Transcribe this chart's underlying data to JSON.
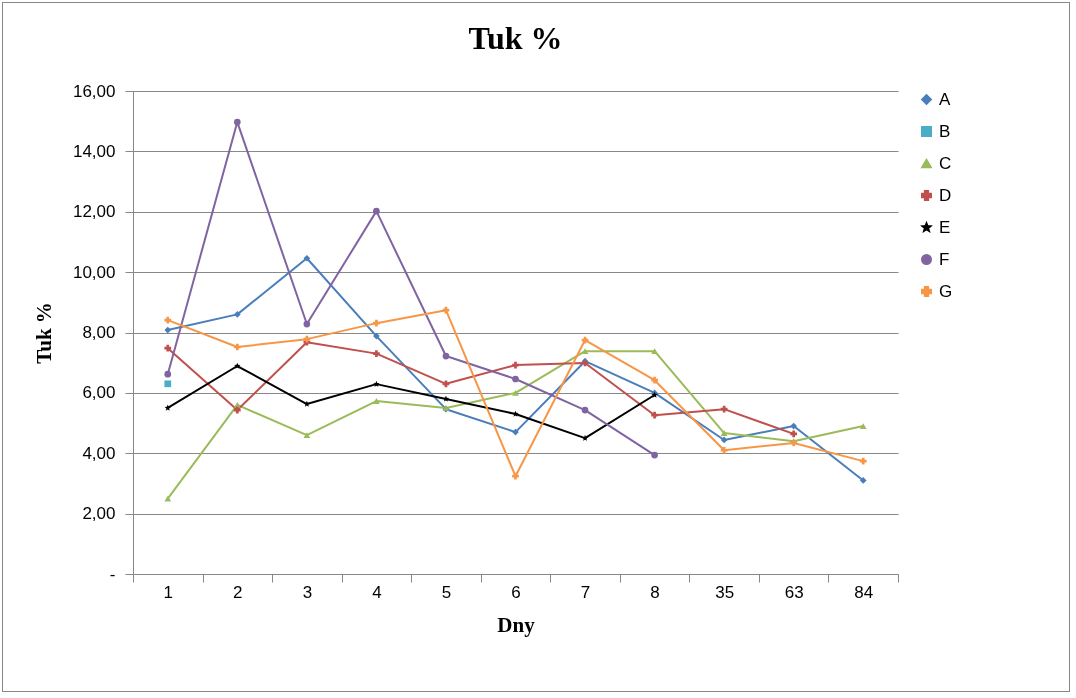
{
  "chart_data": {
    "type": "line",
    "title": "Tuk %",
    "xlabel": "Dny",
    "ylabel": "Tuk %",
    "categories": [
      "1",
      "2",
      "3",
      "4",
      "5",
      "6",
      "7",
      "8",
      "35",
      "63",
      "84"
    ],
    "series": [
      {
        "name": "A",
        "color": "#4a7ebb",
        "marker": "diamond",
        "values": [
          8.08,
          8.6,
          10.46,
          7.88,
          5.46,
          4.7,
          7.05,
          6.0,
          4.44,
          4.9,
          3.1
        ]
      },
      {
        "name": "B",
        "color": "#4bacc6",
        "marker": "square",
        "values": [
          6.3,
          null,
          null,
          null,
          null,
          null,
          null,
          null,
          null,
          null,
          null
        ]
      },
      {
        "name": "C",
        "color": "#9bbb59",
        "marker": "triangle",
        "values": [
          2.5,
          5.6,
          4.6,
          5.73,
          5.5,
          6.0,
          7.38,
          7.38,
          4.67,
          4.4,
          4.9
        ]
      },
      {
        "name": "D",
        "color": "#c0504d",
        "marker": "cross",
        "values": [
          7.48,
          5.43,
          7.68,
          7.3,
          6.3,
          6.92,
          6.99,
          5.26,
          5.46,
          4.64,
          null
        ]
      },
      {
        "name": "E",
        "color": "#000000",
        "marker": "star",
        "values": [
          5.5,
          6.89,
          5.63,
          6.29,
          5.8,
          5.3,
          4.5,
          5.93,
          null,
          null,
          null
        ]
      },
      {
        "name": "F",
        "color": "#8064a2",
        "marker": "circle",
        "values": [
          6.62,
          14.97,
          8.28,
          12.02,
          7.22,
          6.46,
          5.43,
          3.94,
          null,
          null,
          null
        ]
      },
      {
        "name": "G",
        "color": "#f79646",
        "marker": "cross",
        "values": [
          8.41,
          7.52,
          7.78,
          8.31,
          8.74,
          3.24,
          7.75,
          6.42,
          4.1,
          4.34,
          3.74
        ]
      }
    ],
    "ylim": [
      0,
      16
    ],
    "yticks": [
      {
        "value": 0,
        "label": "-"
      },
      {
        "value": 2,
        "label": "2,00"
      },
      {
        "value": 4,
        "label": "4,00"
      },
      {
        "value": 6,
        "label": "6,00"
      },
      {
        "value": 8,
        "label": "8,00"
      },
      {
        "value": 10,
        "label": "10,00"
      },
      {
        "value": 12,
        "label": "12,00"
      },
      {
        "value": 14,
        "label": "14,00"
      },
      {
        "value": 16,
        "label": "16,00"
      }
    ],
    "grid": "y",
    "legend": "right"
  }
}
